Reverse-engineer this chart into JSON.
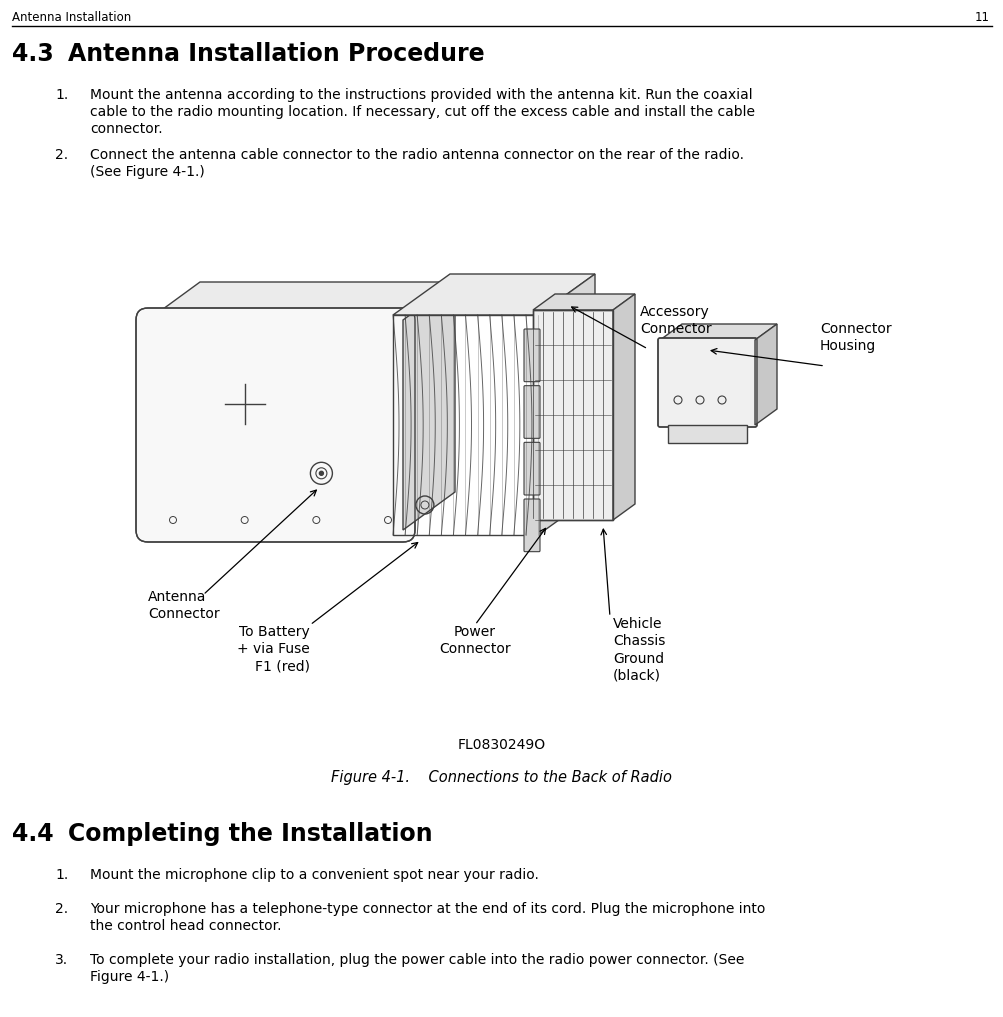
{
  "bg_color": "#ffffff",
  "header_text": "Antenna Installation",
  "header_page": "11",
  "text_color": "#000000",
  "line_color": "#000000",
  "ec": "#404040",
  "figure_caption": "Figure 4-1.    Connections to the Back of Radio",
  "figure_id": "FL0830249O",
  "labels": {
    "antenna_connector": "Antenna\nConnector",
    "to_battery": "To Battery\n+ via Fuse\nF1 (red)",
    "power_connector": "Power\nConnector",
    "vehicle_chassis": "Vehicle\nChassis\nGround\n(black)",
    "accessory_connector": "Accessory\nConnector",
    "connector_housing": "Connector\nHousing"
  }
}
